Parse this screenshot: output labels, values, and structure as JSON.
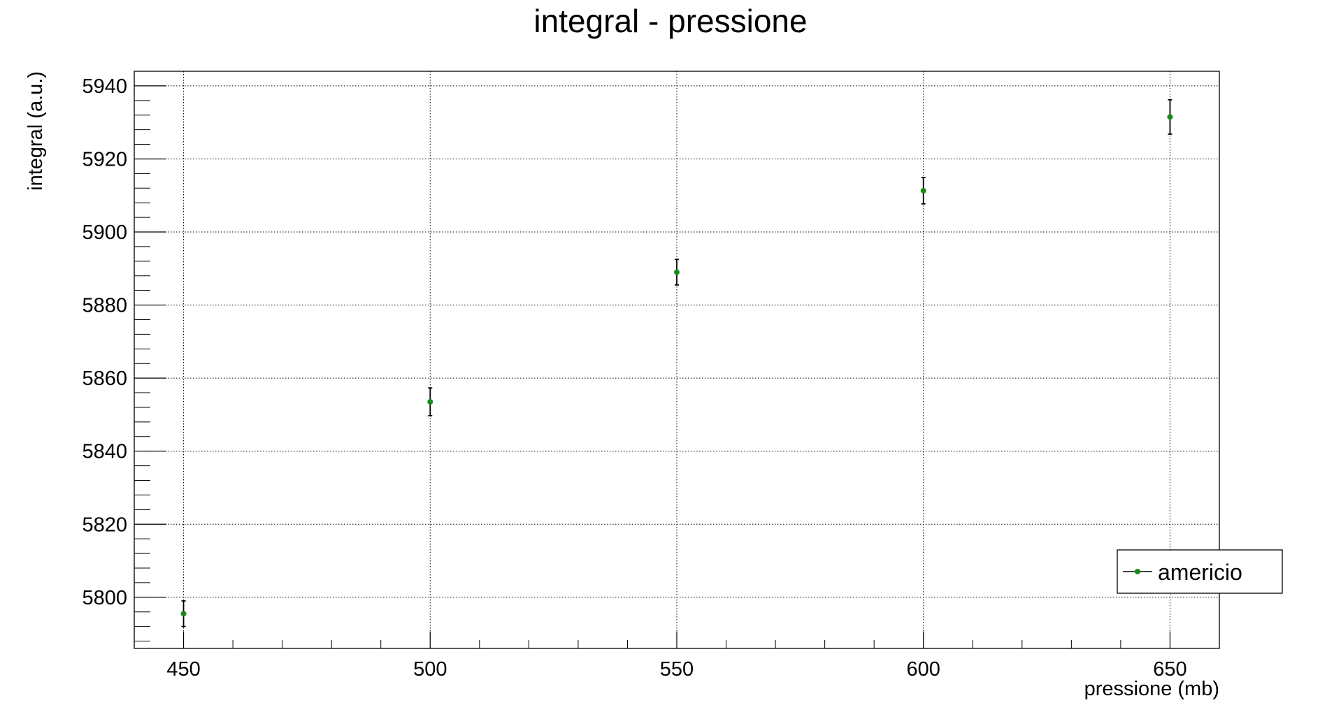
{
  "chart_data": {
    "type": "scatter",
    "title": "integral - pressione",
    "xlabel": "pressione (mb)",
    "ylabel": "integral (a.u.)",
    "xlim": [
      440,
      660
    ],
    "ylim": [
      5786,
      5944
    ],
    "grid": true,
    "legend_position": "bottom-right",
    "x_ticks": [
      "450",
      "500",
      "550",
      "600",
      "650"
    ],
    "y_ticks": [
      "5800",
      "5820",
      "5840",
      "5860",
      "5880",
      "5900",
      "5920",
      "5940"
    ],
    "series": [
      {
        "name": "americio",
        "color": "#1a8a1a",
        "points": [
          {
            "x": 450,
            "y": 5795.5,
            "err": 3.5
          },
          {
            "x": 500,
            "y": 5853.5,
            "err": 3.8
          },
          {
            "x": 550,
            "y": 5889.0,
            "err": 3.5
          },
          {
            "x": 600,
            "y": 5911.3,
            "err": 3.6
          },
          {
            "x": 650,
            "y": 5931.5,
            "err": 4.7
          }
        ]
      }
    ]
  }
}
